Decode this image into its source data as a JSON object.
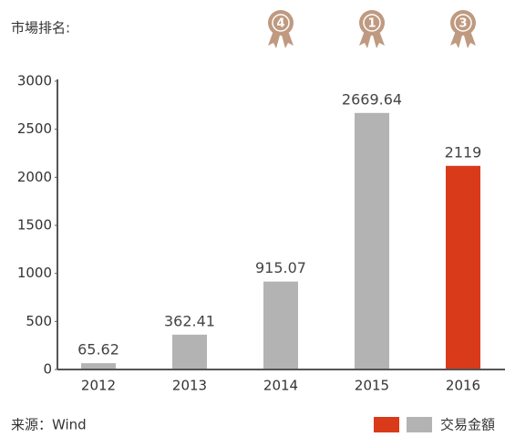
{
  "chart_data": {
    "type": "bar",
    "ranking_label": "市場排名:",
    "categories": [
      "2012",
      "2013",
      "2014",
      "2015",
      "2016"
    ],
    "ranks": [
      null,
      null,
      4,
      1,
      3
    ],
    "series": [
      {
        "name": "交易金額",
        "values": [
          65.62,
          362.41,
          915.07,
          2669.64,
          2119
        ],
        "colors": [
          "#b3b3b3",
          "#b3b3b3",
          "#b3b3b3",
          "#b3b3b3",
          "#d93a1a"
        ]
      }
    ],
    "ylim": [
      0,
      3000
    ],
    "yticks": [
      0,
      500,
      1000,
      1500,
      2000,
      2500,
      3000
    ],
    "source": "来源：Wind",
    "medal_color": "#bf9a80"
  }
}
